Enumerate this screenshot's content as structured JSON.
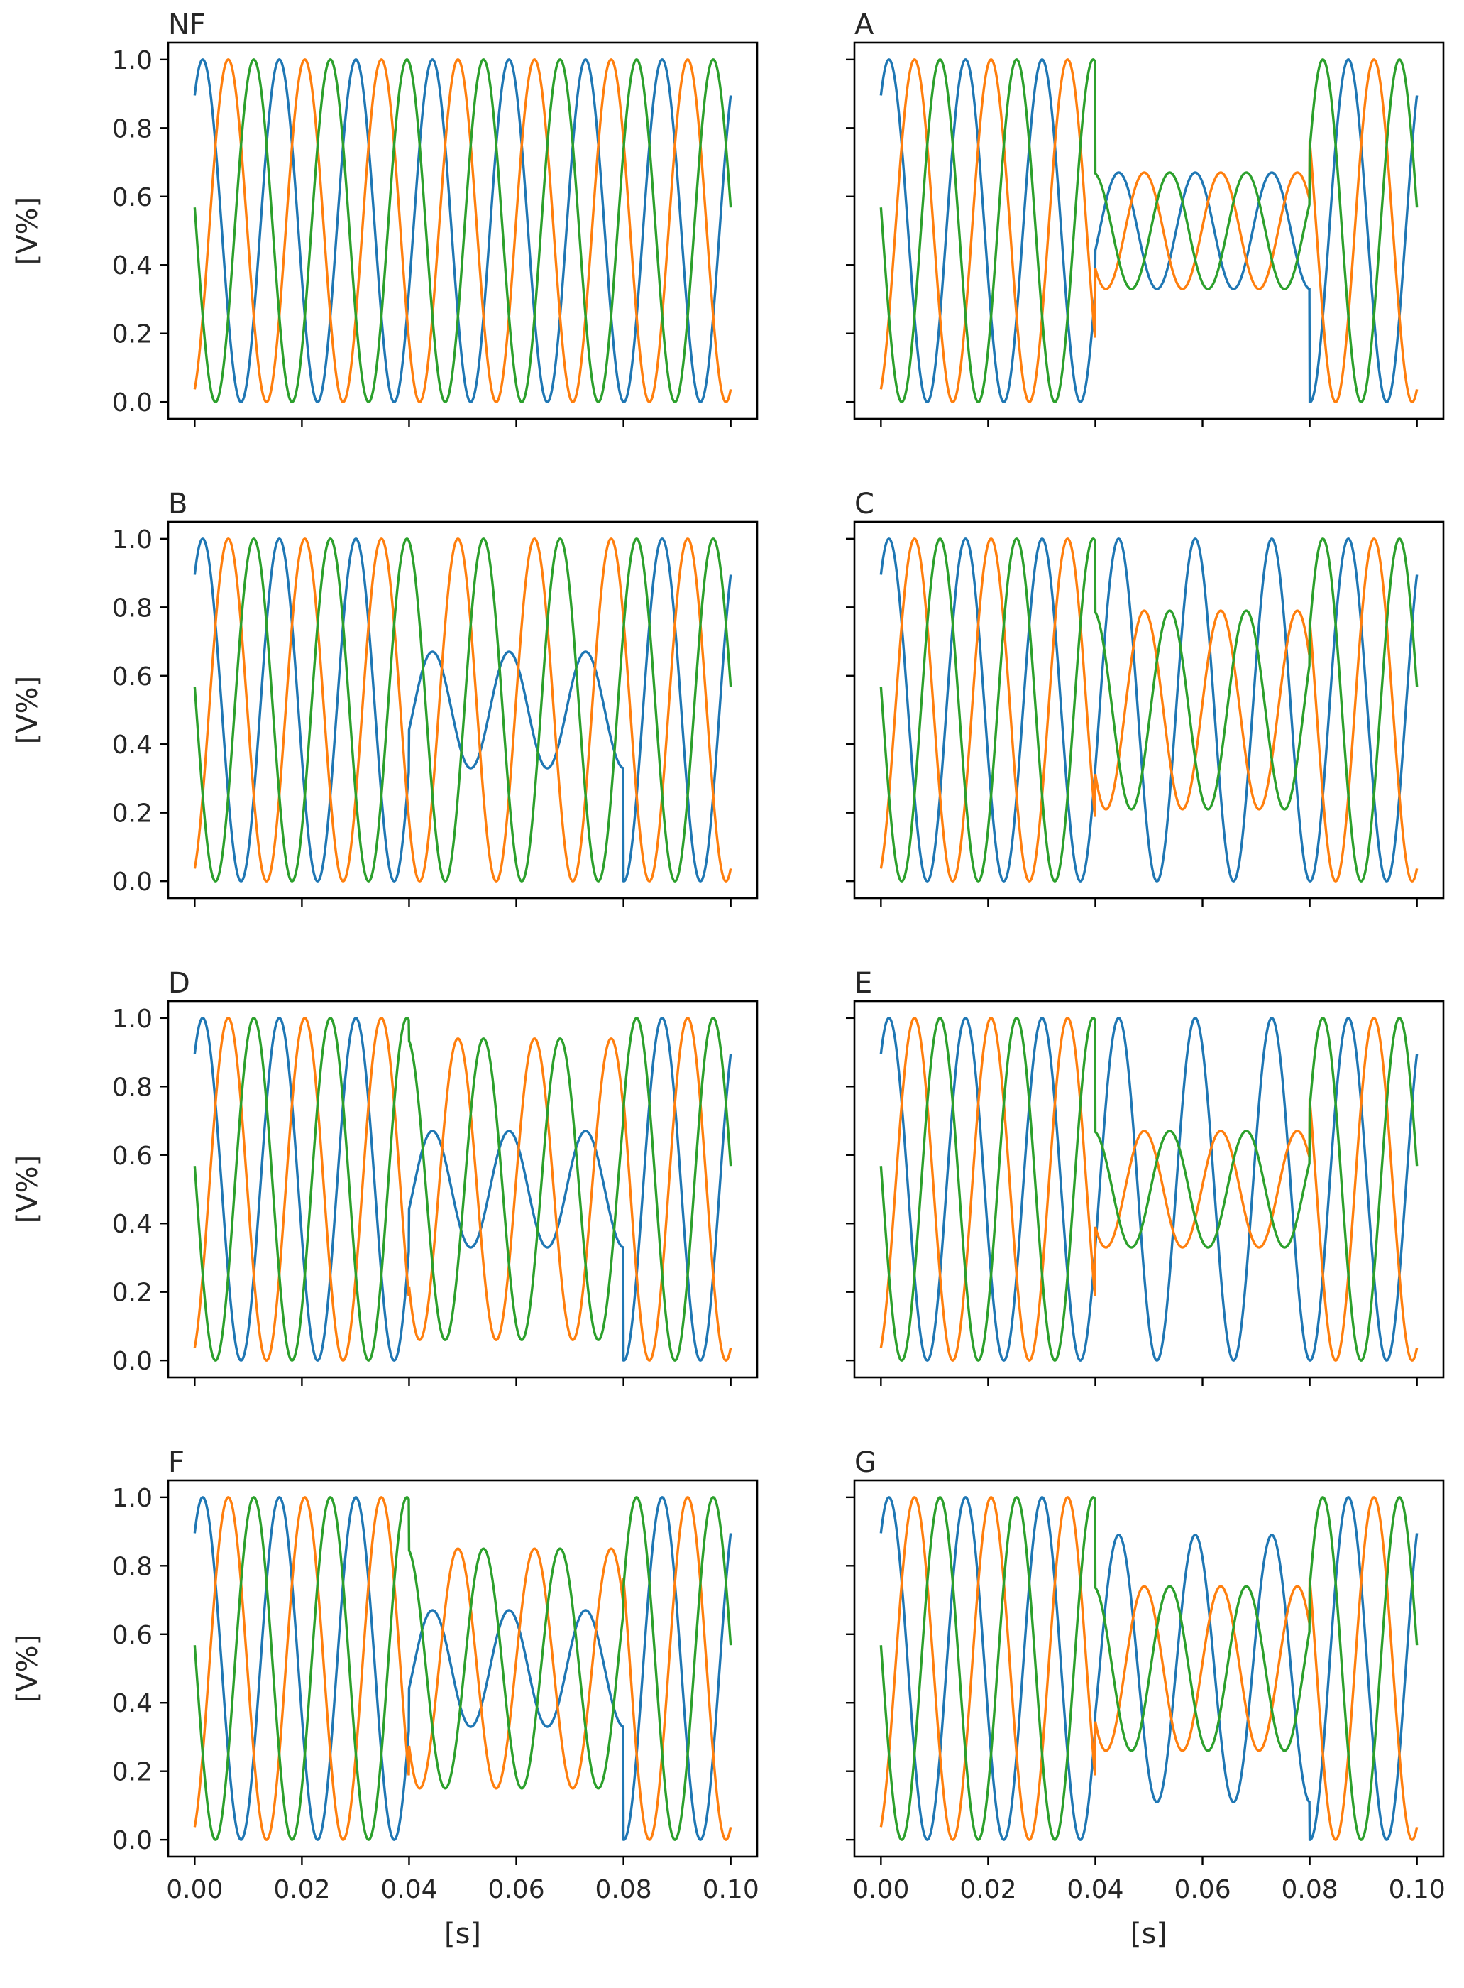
{
  "figure": {
    "ylabel": "[V%]",
    "xlabel": "[s]",
    "colors": {
      "phase_1": "#1f77b4",
      "phase_2": "#ff7f0e",
      "phase_3": "#2ca02c"
    }
  },
  "chart_data": [
    {
      "type": "line",
      "title": "NF",
      "xlim": [
        0,
        0.1
      ],
      "ylim": [
        0,
        1
      ],
      "x_ticks": [
        "0.00",
        "0.02",
        "0.04",
        "0.06",
        "0.08",
        "0.10"
      ],
      "y_ticks": [
        "0.0",
        "0.2",
        "0.4",
        "0.6",
        "0.8",
        "1.0"
      ],
      "grid": false,
      "fault_window": [
        0.04,
        0.08
      ],
      "frequency_hz": 70,
      "series": [
        {
          "color": "#1f77b4",
          "phase_deg": 0,
          "normal": {
            "offset": 0.5,
            "amplitude": 0.5
          },
          "fault": {
            "offset": 0.5,
            "amplitude": 0.5
          }
        },
        {
          "color": "#ff7f0e",
          "phase_deg": -120,
          "normal": {
            "offset": 0.5,
            "amplitude": 0.5
          },
          "fault": {
            "offset": 0.5,
            "amplitude": 0.5
          }
        },
        {
          "color": "#2ca02c",
          "phase_deg": 120,
          "normal": {
            "offset": 0.5,
            "amplitude": 0.5
          },
          "fault": {
            "offset": 0.5,
            "amplitude": 0.5
          }
        }
      ]
    },
    {
      "type": "line",
      "title": "A",
      "xlim": [
        0,
        0.1
      ],
      "ylim": [
        0,
        1
      ],
      "x_ticks": [
        "0.00",
        "0.02",
        "0.04",
        "0.06",
        "0.08",
        "0.10"
      ],
      "y_ticks": [
        "0.0",
        "0.2",
        "0.4",
        "0.6",
        "0.8",
        "1.0"
      ],
      "grid": false,
      "fault_window": [
        0.04,
        0.08
      ],
      "frequency_hz": 70,
      "series": [
        {
          "color": "#1f77b4",
          "phase_deg": 0,
          "normal": {
            "offset": 0.5,
            "amplitude": 0.5
          },
          "fault": {
            "offset": 0.5,
            "amplitude": 0.17
          }
        },
        {
          "color": "#ff7f0e",
          "phase_deg": -120,
          "normal": {
            "offset": 0.5,
            "amplitude": 0.5
          },
          "fault": {
            "offset": 0.5,
            "amplitude": 0.17
          }
        },
        {
          "color": "#2ca02c",
          "phase_deg": 120,
          "normal": {
            "offset": 0.5,
            "amplitude": 0.5
          },
          "fault": {
            "offset": 0.5,
            "amplitude": 0.17
          }
        }
      ]
    },
    {
      "type": "line",
      "title": "B",
      "xlim": [
        0,
        0.1
      ],
      "ylim": [
        0,
        1
      ],
      "x_ticks": [
        "0.00",
        "0.02",
        "0.04",
        "0.06",
        "0.08",
        "0.10"
      ],
      "y_ticks": [
        "0.0",
        "0.2",
        "0.4",
        "0.6",
        "0.8",
        "1.0"
      ],
      "grid": false,
      "fault_window": [
        0.04,
        0.08
      ],
      "frequency_hz": 70,
      "series": [
        {
          "color": "#1f77b4",
          "phase_deg": 0,
          "normal": {
            "offset": 0.5,
            "amplitude": 0.5
          },
          "fault": {
            "offset": 0.5,
            "amplitude": 0.17
          }
        },
        {
          "color": "#ff7f0e",
          "phase_deg": -120,
          "normal": {
            "offset": 0.5,
            "amplitude": 0.5
          },
          "fault": {
            "offset": 0.5,
            "amplitude": 0.5
          }
        },
        {
          "color": "#2ca02c",
          "phase_deg": 120,
          "normal": {
            "offset": 0.5,
            "amplitude": 0.5
          },
          "fault": {
            "offset": 0.5,
            "amplitude": 0.5
          }
        }
      ]
    },
    {
      "type": "line",
      "title": "C",
      "xlim": [
        0,
        0.1
      ],
      "ylim": [
        0,
        1
      ],
      "x_ticks": [
        "0.00",
        "0.02",
        "0.04",
        "0.06",
        "0.08",
        "0.10"
      ],
      "y_ticks": [
        "0.0",
        "0.2",
        "0.4",
        "0.6",
        "0.8",
        "1.0"
      ],
      "grid": false,
      "fault_window": [
        0.04,
        0.08
      ],
      "frequency_hz": 70,
      "series": [
        {
          "color": "#1f77b4",
          "phase_deg": 0,
          "normal": {
            "offset": 0.5,
            "amplitude": 0.5
          },
          "fault": {
            "offset": 0.5,
            "amplitude": 0.5
          }
        },
        {
          "color": "#ff7f0e",
          "phase_deg": -120,
          "normal": {
            "offset": 0.5,
            "amplitude": 0.5
          },
          "fault": {
            "offset": 0.5,
            "amplitude": 0.29
          }
        },
        {
          "color": "#2ca02c",
          "phase_deg": 120,
          "normal": {
            "offset": 0.5,
            "amplitude": 0.5
          },
          "fault": {
            "offset": 0.5,
            "amplitude": 0.29
          }
        }
      ]
    },
    {
      "type": "line",
      "title": "D",
      "xlim": [
        0,
        0.1
      ],
      "ylim": [
        0,
        1
      ],
      "x_ticks": [
        "0.00",
        "0.02",
        "0.04",
        "0.06",
        "0.08",
        "0.10"
      ],
      "y_ticks": [
        "0.0",
        "0.2",
        "0.4",
        "0.6",
        "0.8",
        "1.0"
      ],
      "grid": false,
      "fault_window": [
        0.04,
        0.08
      ],
      "frequency_hz": 70,
      "series": [
        {
          "color": "#1f77b4",
          "phase_deg": 0,
          "normal": {
            "offset": 0.5,
            "amplitude": 0.5
          },
          "fault": {
            "offset": 0.5,
            "amplitude": 0.17
          }
        },
        {
          "color": "#ff7f0e",
          "phase_deg": -120,
          "normal": {
            "offset": 0.5,
            "amplitude": 0.5
          },
          "fault": {
            "offset": 0.5,
            "amplitude": 0.44
          }
        },
        {
          "color": "#2ca02c",
          "phase_deg": 120,
          "normal": {
            "offset": 0.5,
            "amplitude": 0.5
          },
          "fault": {
            "offset": 0.5,
            "amplitude": 0.44
          }
        }
      ]
    },
    {
      "type": "line",
      "title": "E",
      "xlim": [
        0,
        0.1
      ],
      "ylim": [
        0,
        1
      ],
      "x_ticks": [
        "0.00",
        "0.02",
        "0.04",
        "0.06",
        "0.08",
        "0.10"
      ],
      "y_ticks": [
        "0.0",
        "0.2",
        "0.4",
        "0.6",
        "0.8",
        "1.0"
      ],
      "grid": false,
      "fault_window": [
        0.04,
        0.08
      ],
      "frequency_hz": 70,
      "series": [
        {
          "color": "#1f77b4",
          "phase_deg": 0,
          "normal": {
            "offset": 0.5,
            "amplitude": 0.5
          },
          "fault": {
            "offset": 0.5,
            "amplitude": 0.5
          }
        },
        {
          "color": "#ff7f0e",
          "phase_deg": -120,
          "normal": {
            "offset": 0.5,
            "amplitude": 0.5
          },
          "fault": {
            "offset": 0.5,
            "amplitude": 0.17
          }
        },
        {
          "color": "#2ca02c",
          "phase_deg": 120,
          "normal": {
            "offset": 0.5,
            "amplitude": 0.5
          },
          "fault": {
            "offset": 0.5,
            "amplitude": 0.17
          }
        }
      ]
    },
    {
      "type": "line",
      "title": "F",
      "xlim": [
        0,
        0.1
      ],
      "ylim": [
        0,
        1
      ],
      "x_ticks": [
        "0.00",
        "0.02",
        "0.04",
        "0.06",
        "0.08",
        "0.10"
      ],
      "y_ticks": [
        "0.0",
        "0.2",
        "0.4",
        "0.6",
        "0.8",
        "1.0"
      ],
      "grid": false,
      "fault_window": [
        0.04,
        0.08
      ],
      "frequency_hz": 70,
      "series": [
        {
          "color": "#1f77b4",
          "phase_deg": 0,
          "normal": {
            "offset": 0.5,
            "amplitude": 0.5
          },
          "fault": {
            "offset": 0.5,
            "amplitude": 0.17
          }
        },
        {
          "color": "#ff7f0e",
          "phase_deg": -120,
          "normal": {
            "offset": 0.5,
            "amplitude": 0.5
          },
          "fault": {
            "offset": 0.5,
            "amplitude": 0.35
          }
        },
        {
          "color": "#2ca02c",
          "phase_deg": 120,
          "normal": {
            "offset": 0.5,
            "amplitude": 0.5
          },
          "fault": {
            "offset": 0.5,
            "amplitude": 0.35
          }
        }
      ]
    },
    {
      "type": "line",
      "title": "G",
      "xlim": [
        0,
        0.1
      ],
      "ylim": [
        0,
        1
      ],
      "x_ticks": [
        "0.00",
        "0.02",
        "0.04",
        "0.06",
        "0.08",
        "0.10"
      ],
      "y_ticks": [
        "0.0",
        "0.2",
        "0.4",
        "0.6",
        "0.8",
        "1.0"
      ],
      "grid": false,
      "fault_window": [
        0.04,
        0.08
      ],
      "frequency_hz": 70,
      "series": [
        {
          "color": "#1f77b4",
          "phase_deg": 0,
          "normal": {
            "offset": 0.5,
            "amplitude": 0.5
          },
          "fault": {
            "offset": 0.5,
            "amplitude": 0.39
          }
        },
        {
          "color": "#ff7f0e",
          "phase_deg": -120,
          "normal": {
            "offset": 0.5,
            "amplitude": 0.5
          },
          "fault": {
            "offset": 0.5,
            "amplitude": 0.24
          }
        },
        {
          "color": "#2ca02c",
          "phase_deg": 120,
          "normal": {
            "offset": 0.5,
            "amplitude": 0.5
          },
          "fault": {
            "offset": 0.5,
            "amplitude": 0.24
          }
        }
      ]
    }
  ]
}
